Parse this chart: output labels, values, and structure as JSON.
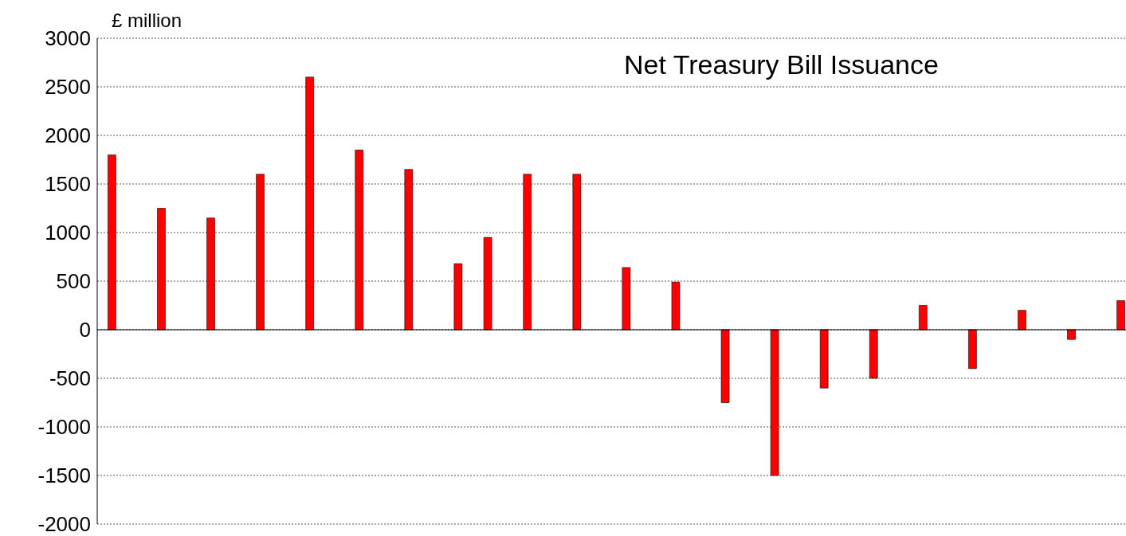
{
  "chart_data": {
    "type": "bar",
    "title": "Net Treasury Bill Issuance",
    "ylabel": "£ million",
    "categories": [
      null,
      null,
      null,
      null,
      null,
      null,
      null,
      null,
      null,
      null,
      null,
      null,
      null,
      null,
      null,
      null,
      null,
      null,
      null,
      null,
      null,
      null,
      null,
      null,
      null,
      null,
      null,
      null,
      null,
      null,
      null,
      null,
      null,
      null,
      null,
      null,
      null,
      null,
      null,
      null,
      null,
      null,
      null,
      null,
      null,
      null,
      null,
      null,
      null,
      null,
      null,
      null,
      null,
      null,
      null,
      null,
      null,
      null,
      null,
      null,
      null,
      null,
      null,
      null,
      null,
      null,
      null,
      null,
      null,
      null,
      null,
      null,
      null,
      null,
      null,
      null,
      null,
      null,
      null,
      null,
      null,
      null,
      null,
      null,
      null,
      null,
      null,
      null,
      null,
      null,
      null,
      null,
      null,
      null,
      null,
      null,
      null,
      null,
      null,
      null,
      null,
      null,
      null,
      null
    ],
    "values": [
      null,
      1800,
      null,
      null,
      null,
      null,
      1250,
      null,
      null,
      null,
      null,
      1150,
      null,
      null,
      null,
      null,
      1600,
      null,
      null,
      null,
      null,
      2600,
      null,
      null,
      null,
      null,
      1850,
      null,
      null,
      null,
      null,
      1650,
      null,
      null,
      null,
      null,
      680,
      null,
      null,
      950,
      null,
      null,
      null,
      1600,
      null,
      null,
      null,
      null,
      1600,
      null,
      null,
      null,
      null,
      640,
      null,
      null,
      null,
      null,
      490,
      null,
      null,
      null,
      null,
      -750,
      null,
      null,
      null,
      null,
      -1500,
      null,
      null,
      null,
      null,
      -600,
      null,
      null,
      null,
      null,
      -500,
      null,
      null,
      null,
      null,
      250,
      null,
      null,
      null,
      null,
      -400,
      null,
      null,
      null,
      null,
      200,
      null,
      null,
      null,
      null,
      -100,
      null,
      null,
      null,
      null,
      300
    ],
    "color": "#ff0000",
    "ylim": [
      -2000,
      3000
    ],
    "yticks": [
      -2000,
      -1500,
      -1000,
      -500,
      0,
      500,
      1000,
      1500,
      2000,
      2500,
      3000
    ],
    "grid": "y",
    "tick_labels": "y"
  }
}
